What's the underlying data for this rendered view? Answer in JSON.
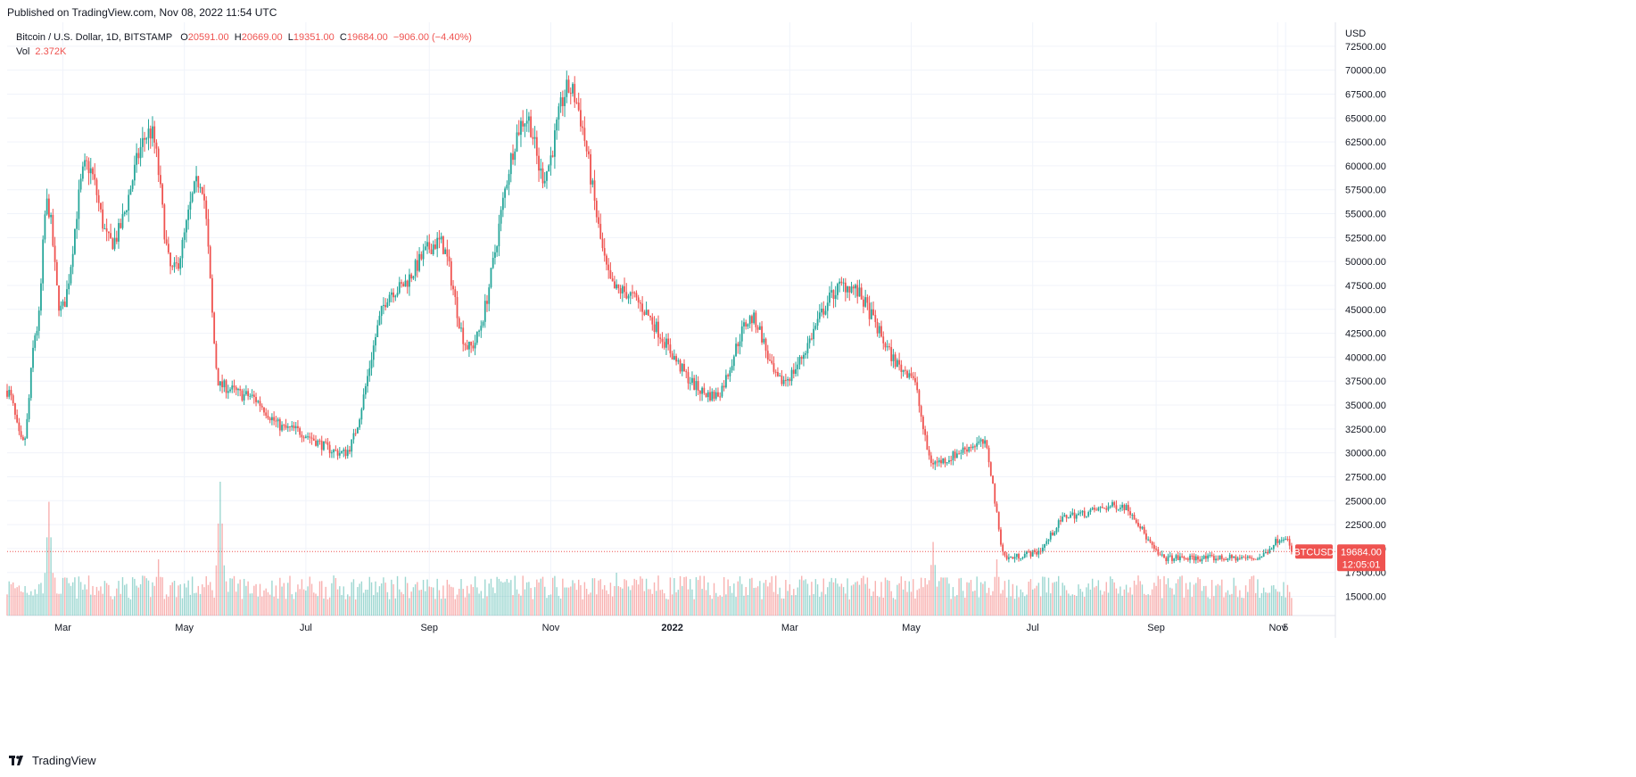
{
  "header": {
    "published": "Published on TradingView.com, Nov 08, 2022 11:54 UTC"
  },
  "legend": {
    "title": "Bitcoin / U.S. Dollar, 1D, BITSTAMP",
    "o_label": "O",
    "o_value": "20591.00",
    "h_label": "H",
    "h_value": "20669.00",
    "l_label": "L",
    "l_value": "19351.00",
    "c_label": "C",
    "c_value": "19684.00",
    "change": "−906.00 (−4.40%)",
    "vol_label": "Vol",
    "vol_value": "2.372K"
  },
  "price_scale": {
    "currency": "USD"
  },
  "last_price": {
    "symbol": "BTCUSD",
    "price": "19684.00",
    "countdown": "12:05:01"
  },
  "footer": {
    "brand": "TradingView",
    "logo": "tv-logo-icon"
  },
  "colors": {
    "up": "#26a69a",
    "down": "#ef5350",
    "grid": "#f0f3fa",
    "text": "#131722"
  },
  "chart_data": {
    "type": "candlestick",
    "y_ticks": [
      15000,
      17500,
      20000,
      22500,
      25000,
      27500,
      30000,
      32500,
      35000,
      37500,
      40000,
      42500,
      45000,
      47500,
      50000,
      52500,
      55000,
      57500,
      60000,
      62500,
      65000,
      67500,
      70000,
      72500
    ],
    "y_tick_labels": [
      "15000.00",
      "17500.00",
      "20000.00",
      "22500.00",
      "25000.00",
      "27500.00",
      "30000.00",
      "32500.00",
      "35000.00",
      "37500.00",
      "40000.00",
      "42500.00",
      "45000.00",
      "47500.00",
      "50000.00",
      "52500.00",
      "55000.00",
      "57500.00",
      "60000.00",
      "62500.00",
      "65000.00",
      "67500.00",
      "70000.00",
      "72500.00"
    ],
    "ylim": [
      13000,
      75000
    ],
    "x_ticks": [
      {
        "label": "Mar",
        "date": "2021-03-01"
      },
      {
        "label": "May",
        "date": "2021-05-01"
      },
      {
        "label": "Jul",
        "date": "2021-07-01"
      },
      {
        "label": "Sep",
        "date": "2021-09-01"
      },
      {
        "label": "Nov",
        "date": "2021-11-01"
      },
      {
        "label": "2022",
        "date": "2022-01-01"
      },
      {
        "label": "Mar",
        "date": "2022-03-01"
      },
      {
        "label": "May",
        "date": "2022-05-01"
      },
      {
        "label": "Jul",
        "date": "2022-07-01"
      },
      {
        "label": "Sep",
        "date": "2022-09-01"
      },
      {
        "label": "Nov",
        "date": "2022-11-01"
      },
      {
        "label": "5",
        "date": "2022-11-05"
      }
    ],
    "xlim": [
      "2021-02-01",
      "2022-11-30"
    ],
    "price_keypoints": [
      {
        "date": "2021-02-01",
        "price": 36500
      },
      {
        "date": "2021-02-09",
        "price": 31000
      },
      {
        "date": "2021-02-16",
        "price": 43000
      },
      {
        "date": "2021-02-21",
        "price": 56000
      },
      {
        "date": "2021-02-28",
        "price": 45000
      },
      {
        "date": "2021-03-13",
        "price": 60000
      },
      {
        "date": "2021-03-25",
        "price": 52000
      },
      {
        "date": "2021-04-14",
        "price": 63500
      },
      {
        "date": "2021-04-25",
        "price": 49000
      },
      {
        "date": "2021-05-09",
        "price": 58500
      },
      {
        "date": "2021-05-19",
        "price": 37000
      },
      {
        "date": "2021-06-01",
        "price": 36000
      },
      {
        "date": "2021-06-22",
        "price": 32500
      },
      {
        "date": "2021-07-20",
        "price": 30000
      },
      {
        "date": "2021-08-14",
        "price": 47000
      },
      {
        "date": "2021-09-06",
        "price": 52000
      },
      {
        "date": "2021-09-21",
        "price": 41000
      },
      {
        "date": "2021-10-20",
        "price": 65000
      },
      {
        "date": "2021-10-28",
        "price": 59000
      },
      {
        "date": "2021-11-10",
        "price": 68000
      },
      {
        "date": "2021-12-04",
        "price": 47000
      },
      {
        "date": "2022-01-22",
        "price": 36000
      },
      {
        "date": "2022-02-10",
        "price": 44000
      },
      {
        "date": "2022-02-24",
        "price": 37500
      },
      {
        "date": "2022-03-29",
        "price": 47500
      },
      {
        "date": "2022-04-30",
        "price": 38500
      },
      {
        "date": "2022-05-12",
        "price": 29000
      },
      {
        "date": "2022-06-06",
        "price": 31000
      },
      {
        "date": "2022-06-18",
        "price": 19000
      },
      {
        "date": "2022-07-01",
        "price": 19500
      },
      {
        "date": "2022-07-20",
        "price": 23500
      },
      {
        "date": "2022-08-14",
        "price": 24500
      },
      {
        "date": "2022-09-06",
        "price": 19000
      },
      {
        "date": "2022-10-21",
        "price": 19000
      },
      {
        "date": "2022-11-05",
        "price": 21300
      },
      {
        "date": "2022-11-08",
        "price": 19684
      }
    ],
    "volume_spikes": [
      {
        "date": "2021-02-22",
        "vol_rel": 0.85
      },
      {
        "date": "2021-05-19",
        "vol_rel": 1.0
      },
      {
        "date": "2022-05-12",
        "vol_rel": 0.55
      },
      {
        "date": "2022-06-13",
        "vol_rel": 0.42
      },
      {
        "date": "2021-04-18",
        "vol_rel": 0.42
      },
      {
        "date": "2021-12-04",
        "vol_rel": 0.32
      }
    ],
    "last_price": 19684,
    "volume_last": "2.372K"
  }
}
